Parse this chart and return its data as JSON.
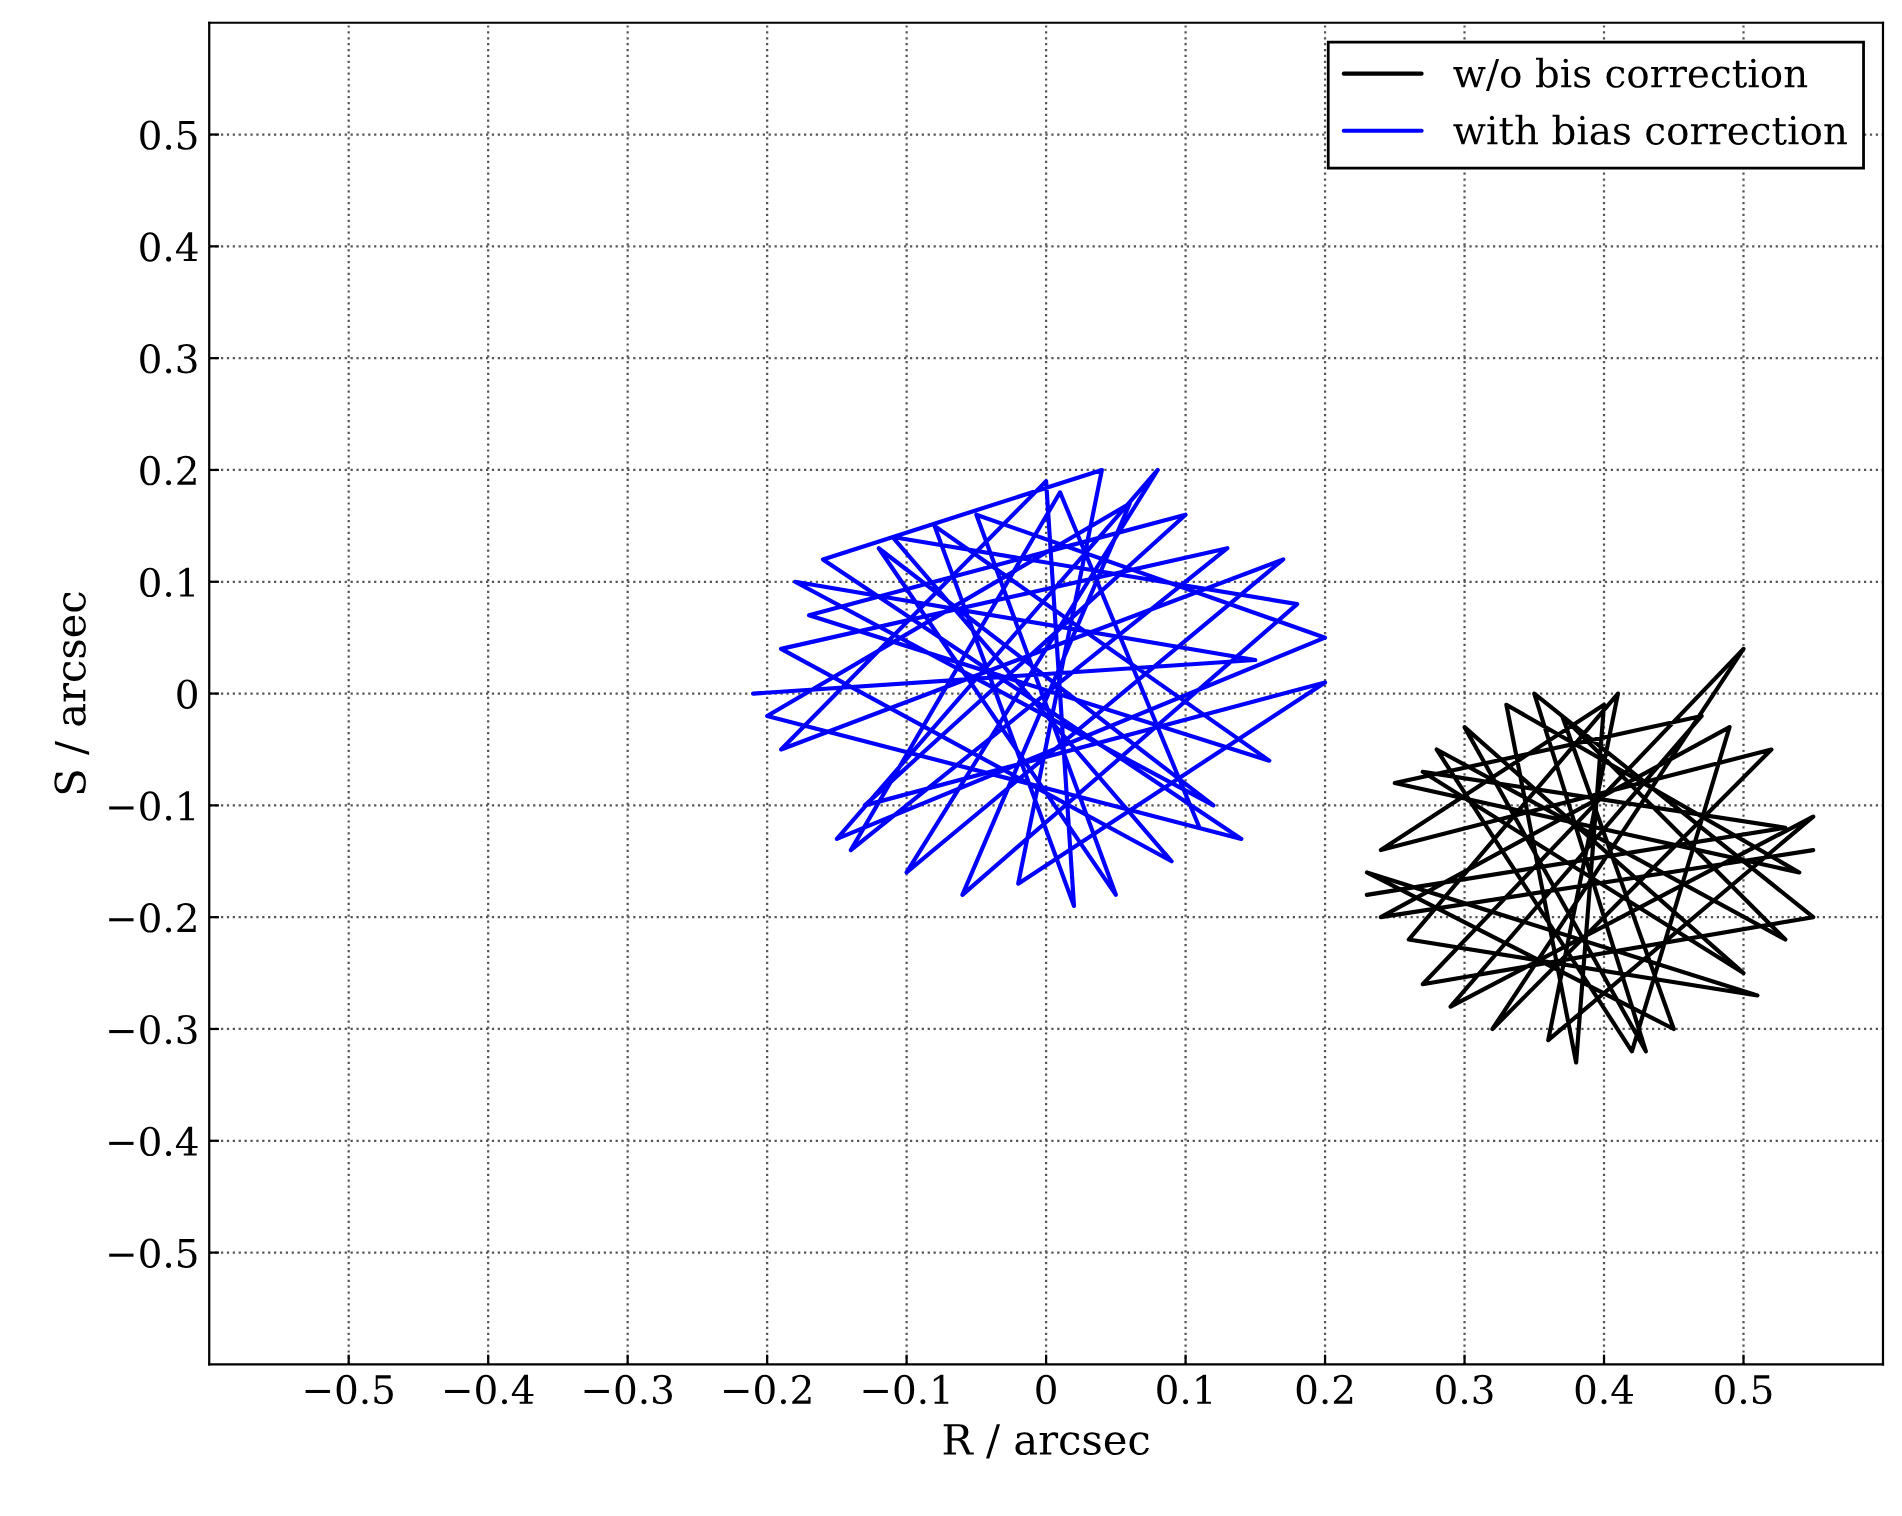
{
  "chart_data": {
    "type": "line",
    "xlabel": "R / arcsec",
    "ylabel": "S / arcsec",
    "xlim": [
      -0.6,
      0.6
    ],
    "ylim": [
      -0.6,
      0.6
    ],
    "xticks": [
      -0.5,
      -0.4,
      -0.3,
      -0.2,
      -0.1,
      0,
      0.1,
      0.2,
      0.3,
      0.4,
      0.5
    ],
    "yticks": [
      -0.5,
      -0.4,
      -0.3,
      -0.2,
      -0.1,
      0,
      0.1,
      0.2,
      0.3,
      0.4,
      0.5
    ],
    "grid": true,
    "legend": "top right",
    "marker": "none",
    "line_style": "solid",
    "series": [
      {
        "name": "w/o bis correction",
        "color": "#000000",
        "x": [
          0.23,
          0.53,
          0.27,
          0.5,
          0.3,
          0.43,
          0.35,
          0.55,
          0.27,
          0.5,
          0.32,
          0.52,
          0.24,
          0.4,
          0.38,
          0.33,
          0.54,
          0.25,
          0.47,
          0.29,
          0.55,
          0.36,
          0.41,
          0.26,
          0.51,
          0.23,
          0.45,
          0.37,
          0.53,
          0.28,
          0.42,
          0.49,
          0.24,
          0.55
        ],
        "values": [
          -0.18,
          -0.12,
          -0.07,
          -0.25,
          -0.03,
          -0.32,
          0.0,
          -0.2,
          -0.26,
          0.04,
          -0.3,
          -0.05,
          -0.14,
          -0.01,
          -0.33,
          -0.01,
          -0.16,
          -0.08,
          -0.02,
          -0.28,
          -0.11,
          -0.31,
          0.0,
          -0.22,
          -0.27,
          -0.16,
          -0.3,
          -0.02,
          -0.22,
          -0.05,
          -0.32,
          -0.03,
          -0.2,
          -0.14
        ]
      },
      {
        "name": "with bias correction",
        "color": "#0000ff",
        "x": [
          -0.21,
          0.15,
          -0.18,
          0.12,
          -0.12,
          0.05,
          -0.05,
          0.2,
          -0.15,
          0.08,
          -0.1,
          0.17,
          -0.19,
          0.0,
          0.02,
          -0.08,
          0.16,
          -0.17,
          0.1,
          -0.13,
          0.2,
          -0.02,
          0.04,
          -0.16,
          0.14,
          -0.2,
          0.06,
          -0.06,
          0.18,
          -0.11,
          0.09,
          -0.19,
          0.13,
          -0.14,
          0.01,
          0.11
        ],
        "values": [
          0.0,
          0.03,
          0.1,
          -0.1,
          0.13,
          -0.18,
          0.16,
          0.05,
          -0.13,
          0.2,
          -0.16,
          0.12,
          -0.05,
          0.19,
          -0.19,
          0.15,
          -0.06,
          0.07,
          0.16,
          -0.1,
          0.01,
          -0.17,
          0.2,
          0.12,
          -0.13,
          -0.02,
          0.17,
          -0.18,
          0.08,
          0.14,
          -0.15,
          0.04,
          0.13,
          -0.14,
          0.18,
          -0.12
        ]
      }
    ]
  }
}
